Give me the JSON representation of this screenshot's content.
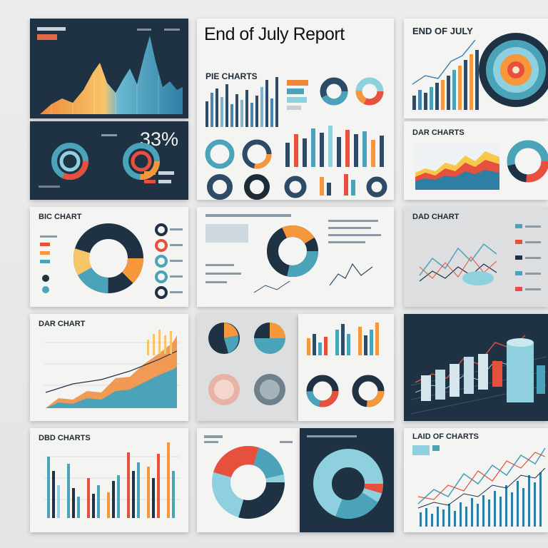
{
  "title": "End of July Report",
  "percent": "33%",
  "headings": {
    "pie_charts": "PIE CHARTS",
    "end_of_july": "END OF JULY",
    "dar_charts": "DAR CHARTS",
    "bic_chart": "BIC CHART",
    "dad_chart": "DAD CHART",
    "dar_chart": "DAR CHART",
    "dbd_charts": "DBD CHARTS",
    "lad_charts": "LAID OF CHARTS"
  },
  "colors": {
    "navy": "#1f3243",
    "teal": "#4aa3b8",
    "orange": "#f5973a",
    "red": "#e8503e",
    "light_blue": "#8fd0de"
  }
}
